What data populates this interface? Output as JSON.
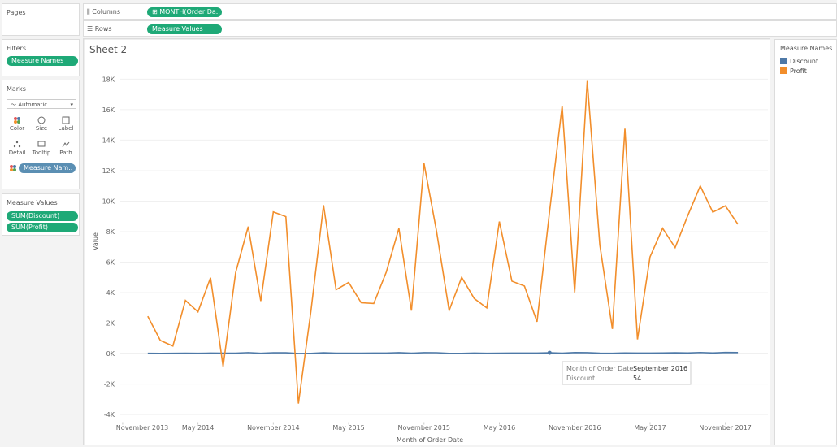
{
  "ui": {
    "pages": "Pages",
    "columns_label": "Columns",
    "columns_pill": "MONTH(Order Da..",
    "rows_label": "Rows",
    "rows_pill": "Measure Values",
    "filters": "Filters",
    "filter_pill": "Measure Names",
    "marks": "Marks",
    "mark_type": "Automatic",
    "mark_cards": [
      "Color",
      "Size",
      "Label",
      "Detail",
      "Tooltip",
      "Path"
    ],
    "marks_pill": "Measure Nam..",
    "measure_values": "Measure Values",
    "measure_pills": [
      "SUM(Discount)",
      "SUM(Profit)"
    ]
  },
  "chart_data": {
    "type": "line",
    "title": "Sheet 2",
    "x_label": "Month of Order Date",
    "y_label": "Value",
    "legend_title": "Measure Names",
    "x": [
      "2014-01",
      "2014-02",
      "2014-03",
      "2014-04",
      "2014-05",
      "2014-06",
      "2014-07",
      "2014-08",
      "2014-09",
      "2014-10",
      "2014-11",
      "2014-12",
      "2015-01",
      "2015-02",
      "2015-03",
      "2015-04",
      "2015-05",
      "2015-06",
      "2015-07",
      "2015-08",
      "2015-09",
      "2015-10",
      "2015-11",
      "2015-12",
      "2016-01",
      "2016-02",
      "2016-03",
      "2016-04",
      "2016-05",
      "2016-06",
      "2016-07",
      "2016-08",
      "2016-09",
      "2016-10",
      "2016-11",
      "2016-12",
      "2017-01",
      "2017-02",
      "2017-03",
      "2017-04",
      "2017-05",
      "2017-06",
      "2017-07",
      "2017-08",
      "2017-09",
      "2017-10",
      "2017-11",
      "2017-12"
    ],
    "xlim": [
      "2013-09",
      "2018-02"
    ],
    "xticks": [
      {
        "value": "2013-11",
        "label": "November 2013"
      },
      {
        "value": "2014-05",
        "label": "May 2014"
      },
      {
        "value": "2014-11",
        "label": "November 2014"
      },
      {
        "value": "2015-05",
        "label": "May 2015"
      },
      {
        "value": "2015-11",
        "label": "November 2015"
      },
      {
        "value": "2016-05",
        "label": "May 2016"
      },
      {
        "value": "2016-11",
        "label": "November 2016"
      },
      {
        "value": "2017-05",
        "label": "May 2017"
      },
      {
        "value": "2017-11",
        "label": "November 2017"
      }
    ],
    "ylim": [
      -4500,
      18500
    ],
    "yticks": [
      {
        "value": -4000,
        "label": "-4K"
      },
      {
        "value": -2000,
        "label": "-2K"
      },
      {
        "value": 0,
        "label": "0K"
      },
      {
        "value": 2000,
        "label": "2K"
      },
      {
        "value": 4000,
        "label": "4K"
      },
      {
        "value": 6000,
        "label": "6K"
      },
      {
        "value": 8000,
        "label": "8K"
      },
      {
        "value": 10000,
        "label": "10K"
      },
      {
        "value": 12000,
        "label": "12K"
      },
      {
        "value": 14000,
        "label": "14K"
      },
      {
        "value": 16000,
        "label": "16K"
      },
      {
        "value": 18000,
        "label": "18K"
      }
    ],
    "grid": true,
    "series": [
      {
        "name": "Discount",
        "color": "#4e79a7",
        "values": [
          21,
          15,
          23,
          25,
          22,
          34,
          28,
          31,
          64,
          22,
          57,
          54,
          11,
          13,
          52,
          28,
          26,
          29,
          33,
          38,
          62,
          27,
          63,
          57,
          14,
          16,
          33,
          22,
          31,
          36,
          32,
          34,
          54,
          30,
          65,
          62,
          26,
          21,
          44,
          38,
          38,
          44,
          52,
          39,
          70,
          43,
          72,
          66
        ]
      },
      {
        "name": "Profit",
        "color": "#f28e2b",
        "values": [
          2450,
          862,
          499,
          3489,
          2739,
          4977,
          -841,
          5318,
          8329,
          3448,
          9292,
          8984,
          -3281,
          2814,
          9732,
          4187,
          4668,
          3335,
          3289,
          5355,
          8210,
          2817,
          12474,
          8016,
          2825,
          5004,
          3612,
          2997,
          8662,
          4750,
          4432,
          2085,
          9329,
          16243,
          4012,
          17885,
          7140,
          1614,
          14752,
          933,
          6343,
          8223,
          6953,
          9040,
          10991,
          9275,
          9690,
          8483
        ]
      }
    ]
  },
  "tooltip": {
    "month_label": "Month of Order Date:",
    "month": "September 2016",
    "value_label": "Discount:"
  }
}
